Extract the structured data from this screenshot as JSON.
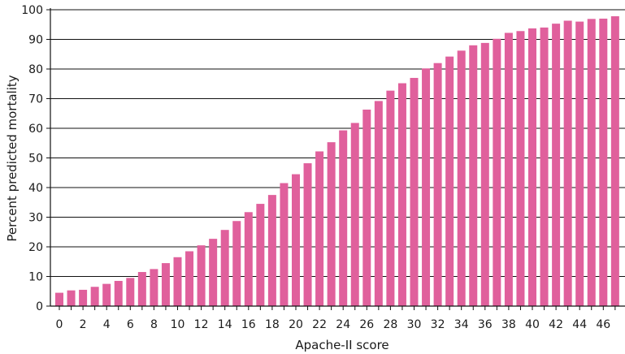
{
  "chart_data": {
    "type": "bar",
    "xlabel": "Apache-II score",
    "ylabel": "Percent predicted mortality",
    "ylim": [
      0,
      100
    ],
    "y_ticks": [
      0,
      10,
      20,
      30,
      40,
      50,
      60,
      70,
      80,
      90,
      100
    ],
    "x_tick_labels": [
      "0",
      "2",
      "4",
      "6",
      "8",
      "10",
      "12",
      "14",
      "16",
      "18",
      "20",
      "22",
      "24",
      "26",
      "28",
      "30",
      "32",
      "34",
      "36",
      "38",
      "40",
      "42",
      "44",
      "46"
    ],
    "grid": "horizontal",
    "bar_color": "#e0609c",
    "categories": [
      0,
      1,
      2,
      3,
      4,
      5,
      6,
      7,
      8,
      9,
      10,
      11,
      12,
      13,
      14,
      15,
      16,
      17,
      18,
      19,
      20,
      21,
      22,
      23,
      24,
      25,
      26,
      27,
      28,
      29,
      30,
      31,
      32,
      33,
      34,
      35,
      36,
      37,
      38,
      39,
      40,
      41,
      42,
      43,
      44,
      45,
      46,
      47
    ],
    "values": [
      4.5,
      5.3,
      5.5,
      6.5,
      7.5,
      8.5,
      9.5,
      11.5,
      12.5,
      14.5,
      16.5,
      18.5,
      20.5,
      22.7,
      25.7,
      28.7,
      31.7,
      34.5,
      37.5,
      41.5,
      44.5,
      48.2,
      52.2,
      55.3,
      59.3,
      61.8,
      66.3,
      69.2,
      72.7,
      75.2,
      77.0,
      80.2,
      82.0,
      84.2,
      86.2,
      88.0,
      88.8,
      90.2,
      92.2,
      92.8,
      93.7,
      94.0,
      95.3,
      96.3,
      96.0,
      96.9,
      97.0,
      97.8
    ]
  }
}
